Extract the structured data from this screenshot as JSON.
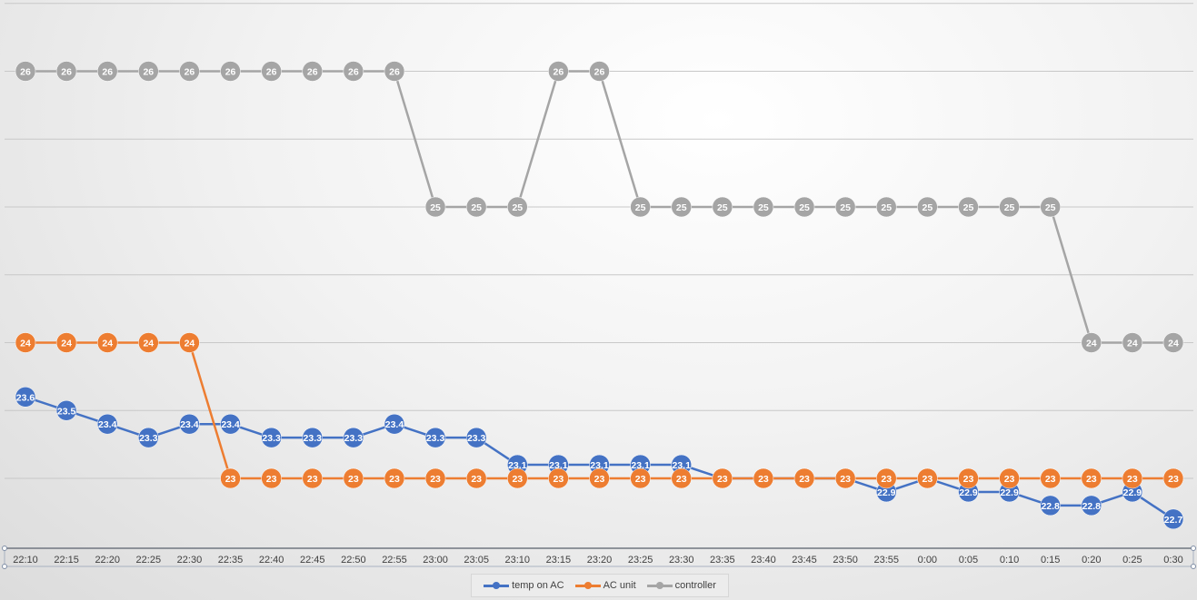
{
  "chart_data": {
    "type": "line",
    "title": "",
    "xlabel": "",
    "ylabel": "",
    "ylim": [
      22.4,
      26.8
    ],
    "grid": true,
    "legend_position": "bottom",
    "categories": [
      "22:10",
      "22:15",
      "22:20",
      "22:25",
      "22:30",
      "22:35",
      "22:40",
      "22:45",
      "22:50",
      "22:55",
      "23:00",
      "23:05",
      "23:10",
      "23:15",
      "23:20",
      "23:25",
      "23:30",
      "23:35",
      "23:40",
      "23:45",
      "23:50",
      "23:55",
      "0:00",
      "0:05",
      "0:10",
      "0:15",
      "0:20",
      "0:25",
      "0:30"
    ],
    "series": [
      {
        "name": "temp on AC",
        "color": "#4472C4",
        "values": [
          23.6,
          23.5,
          23.4,
          23.3,
          23.4,
          23.4,
          23.3,
          23.3,
          23.3,
          23.4,
          23.3,
          23.3,
          23.1,
          23.1,
          23.1,
          23.1,
          23.1,
          23,
          23,
          23,
          23,
          22.9,
          23,
          22.9,
          22.9,
          22.8,
          22.8,
          22.9,
          22.7
        ],
        "labels": [
          "23.6",
          "23.5",
          "23.4",
          "23.3",
          "23.4",
          "23.4",
          "23.3",
          "23.3",
          "23.3",
          "23.4",
          "23.3",
          "23.3",
          "23.1",
          "23.1",
          "23.1",
          "23.1",
          "23.1",
          "",
          "",
          "",
          "",
          "22.9",
          "",
          "22.9",
          "22.9",
          "22.8",
          "22.8",
          "22.9",
          "22.7"
        ]
      },
      {
        "name": "AC unit",
        "color": "#ED7D31",
        "values": [
          24,
          24,
          24,
          24,
          24,
          23,
          23,
          23,
          23,
          23,
          23,
          23,
          23,
          23,
          23,
          23,
          23,
          23,
          23,
          23,
          23,
          23,
          23,
          23,
          23,
          23,
          23,
          23,
          23
        ],
        "labels": [
          "24",
          "24",
          "24",
          "24",
          "24",
          "23",
          "23",
          "23",
          "23",
          "23",
          "23",
          "23",
          "23",
          "23",
          "23",
          "23",
          "23",
          "23",
          "23",
          "23",
          "23",
          "23",
          "23",
          "23",
          "23",
          "23",
          "23",
          "23",
          "23"
        ]
      },
      {
        "name": "controller",
        "color": "#A5A5A5",
        "values": [
          26,
          26,
          26,
          26,
          26,
          26,
          26,
          26,
          26,
          26,
          25,
          25,
          25,
          26,
          26,
          25,
          25,
          25,
          25,
          25,
          25,
          25,
          25,
          25,
          25,
          25,
          24,
          24,
          24
        ],
        "labels": [
          "26",
          "26",
          "26",
          "26",
          "26",
          "26",
          "26",
          "26",
          "26",
          "26",
          "25",
          "25",
          "25",
          "26",
          "26",
          "25",
          "25",
          "25",
          "25",
          "25",
          "25",
          "25",
          "25",
          "25",
          "25",
          "25",
          "24",
          "24",
          "24"
        ]
      }
    ]
  }
}
